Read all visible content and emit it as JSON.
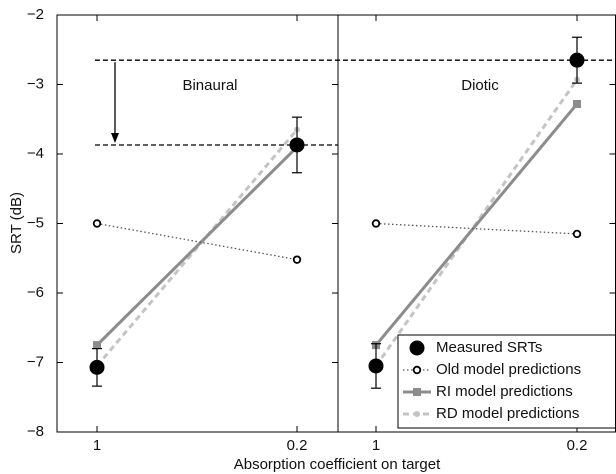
{
  "chart_data": {
    "type": "line",
    "ylabel": "SRT (dB)",
    "xlabel": "Absorption coefficient on target",
    "ylim": [
      -8,
      -2
    ],
    "yticks": [
      {
        "value": -2,
        "label": "−2"
      },
      {
        "value": -3,
        "label": "−3"
      },
      {
        "value": -4,
        "label": "−4"
      },
      {
        "value": -5,
        "label": "−5"
      },
      {
        "value": -6,
        "label": "−6"
      },
      {
        "value": -7,
        "label": "−7"
      },
      {
        "value": -8,
        "label": "−8"
      }
    ],
    "categories": [
      "1",
      "0.2"
    ],
    "series": [
      {
        "name": "Measured SRTs",
        "color": "#000000",
        "line_style": "none",
        "marker": "circle"
      },
      {
        "name": "Old model predictions",
        "color": "#555555",
        "line_style": "dotted",
        "marker": "open-circle"
      },
      {
        "name": "RI model predictions",
        "color": "#8c8c8c",
        "line_style": "solid",
        "marker": "square"
      },
      {
        "name": "RD model predictions",
        "color": "#c4c4c4",
        "line_style": "dashed",
        "marker": "small-circle"
      }
    ],
    "legend": "lower right",
    "panels": [
      {
        "title": "Binaural",
        "values": [
          [
            -7.07,
            -3.87
          ],
          [
            -5.0,
            -5.52
          ],
          [
            -6.75,
            -3.9
          ],
          [
            -7.05,
            -3.65
          ]
        ],
        "errors": [
          0.27,
          0.4
        ]
      },
      {
        "title": "Diotic",
        "values": [
          [
            -7.05,
            -2.65
          ],
          [
            -5.0,
            -5.15
          ],
          [
            -6.75,
            -3.28
          ],
          [
            -7.05,
            -2.93
          ]
        ],
        "errors": [
          0.32,
          0.33
        ]
      }
    ]
  }
}
